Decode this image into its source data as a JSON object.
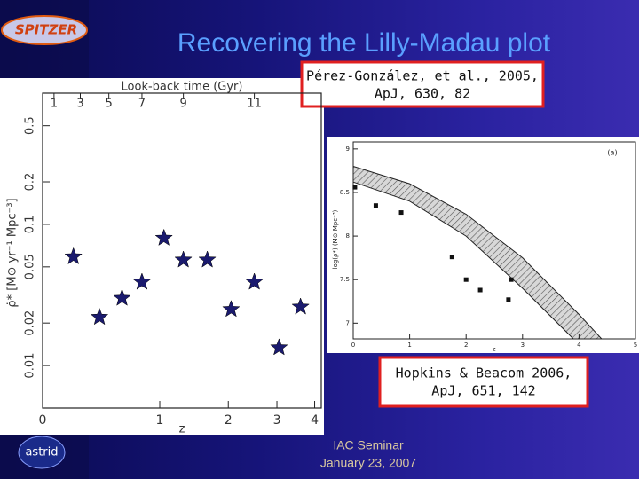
{
  "header": {
    "title": "Recovering the Lilly-Madau plot",
    "logo": "SPITZER",
    "bottom_logo": "astrid"
  },
  "left_plot": {
    "type": "scatter",
    "top_axis_label": "Look-back time (Gyr)",
    "top_ticks": [
      1,
      3,
      5,
      7,
      9,
      11
    ],
    "xlabel": "z",
    "ylabel": "ρ̇* [M⊙ yr⁻¹ Mpc⁻³]",
    "xscale": "log(1+z)",
    "log_y": true,
    "xlim": [
      0,
      4.2
    ],
    "xticks": [
      0,
      1,
      2,
      3,
      4
    ],
    "ylim": [
      0.005,
      0.85
    ],
    "yticks": [
      0.01,
      0.02,
      0.05,
      0.1,
      0.2,
      0.5
    ],
    "x": [
      0.2,
      0.4,
      0.6,
      0.8,
      1.05,
      1.3,
      1.65,
      2.05,
      2.5,
      3.05,
      3.6
    ],
    "values": [
      0.059,
      0.022,
      0.03,
      0.039,
      0.08,
      0.056,
      0.056,
      0.025,
      0.039,
      0.0134,
      0.026
    ],
    "color": "#1a1a6e",
    "citation": [
      "Pérez-González, et al., 2005,",
      "ApJ, 630, 82"
    ]
  },
  "right_plot": {
    "type": "scatter",
    "panel": "(a)",
    "xlabel": "z",
    "ylabel": "log(ρ*) (M⊙ Mpc⁻³)",
    "xlim": [
      0,
      5
    ],
    "xticks": [
      0,
      1,
      2,
      3,
      4,
      5
    ],
    "ylim": [
      6.82,
      9.08
    ],
    "yticks": [
      7,
      7.5,
      8,
      8.5,
      9
    ],
    "x": [
      0.03,
      0.4,
      0.85,
      1.75,
      2,
      2.25,
      2.8,
      2.75
    ],
    "values": [
      8.56,
      8.35,
      8.27,
      7.76,
      7.5,
      7.38,
      7.5,
      7.27
    ],
    "color": "#111111",
    "band_upper": {
      "x": [
        0,
        1,
        2,
        3,
        4,
        4.4
      ],
      "values": [
        8.8,
        8.6,
        8.25,
        7.75,
        7.1,
        6.82
      ]
    },
    "band_lower": {
      "x": [
        0,
        1,
        2,
        3,
        3.9
      ],
      "values": [
        8.62,
        8.4,
        8.0,
        7.4,
        6.82
      ]
    },
    "citation": [
      "Hopkins & Beacom 2006,",
      "ApJ, 651, 142"
    ]
  },
  "footer": {
    "lines": [
      "IAC Seminar",
      "January 23, 2007"
    ]
  }
}
